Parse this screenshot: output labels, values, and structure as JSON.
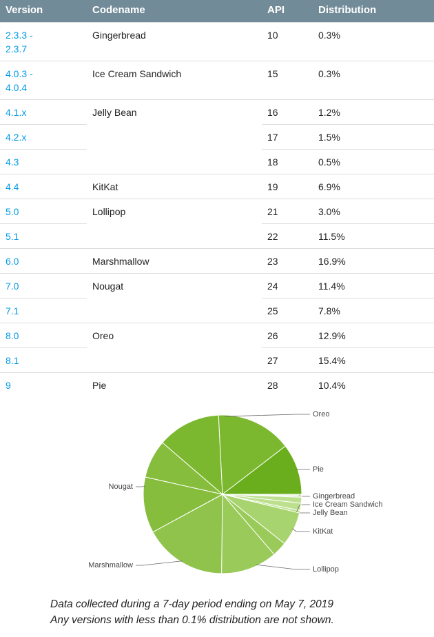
{
  "table": {
    "headers": [
      "Version",
      "Codename",
      "API",
      "Distribution"
    ],
    "groups": [
      {
        "codename": "Gingerbread",
        "rows": [
          {
            "version": "2.3.3 - 2.3.7",
            "api": 10,
            "distribution": {
              "value": 0.3,
              "label": "0.3%"
            }
          }
        ]
      },
      {
        "codename": "Ice Cream Sandwich",
        "rows": [
          {
            "version": "4.0.3 - 4.0.4",
            "api": 15,
            "distribution": {
              "value": 0.3,
              "label": "0.3%"
            }
          }
        ]
      },
      {
        "codename": "Jelly Bean",
        "rows": [
          {
            "version": "4.1.x",
            "api": 16,
            "distribution": {
              "value": 1.2,
              "label": "1.2%"
            }
          },
          {
            "version": "4.2.x",
            "api": 17,
            "distribution": {
              "value": 1.5,
              "label": "1.5%"
            }
          },
          {
            "version": "4.3",
            "api": 18,
            "distribution": {
              "value": 0.5,
              "label": "0.5%"
            }
          }
        ]
      },
      {
        "codename": "KitKat",
        "rows": [
          {
            "version": "4.4",
            "api": 19,
            "distribution": {
              "value": 6.9,
              "label": "6.9%"
            }
          }
        ]
      },
      {
        "codename": "Lollipop",
        "rows": [
          {
            "version": "5.0",
            "api": 21,
            "distribution": {
              "value": 3.0,
              "label": "3.0%"
            }
          },
          {
            "version": "5.1",
            "api": 22,
            "distribution": {
              "value": 11.5,
              "label": "11.5%"
            }
          }
        ]
      },
      {
        "codename": "Marshmallow",
        "rows": [
          {
            "version": "6.0",
            "api": 23,
            "distribution": {
              "value": 16.9,
              "label": "16.9%"
            }
          }
        ]
      },
      {
        "codename": "Nougat",
        "rows": [
          {
            "version": "7.0",
            "api": 24,
            "distribution": {
              "value": 11.4,
              "label": "11.4%"
            }
          },
          {
            "version": "7.1",
            "api": 25,
            "distribution": {
              "value": 7.8,
              "label": "7.8%"
            }
          }
        ]
      },
      {
        "codename": "Oreo",
        "rows": [
          {
            "version": "8.0",
            "api": 26,
            "distribution": {
              "value": 12.9,
              "label": "12.9%"
            }
          },
          {
            "version": "8.1",
            "api": 27,
            "distribution": {
              "value": 15.4,
              "label": "15.4%"
            }
          }
        ]
      },
      {
        "codename": "Pie",
        "rows": [
          {
            "version": "9",
            "api": 28,
            "distribution": {
              "value": 10.4,
              "label": "10.4%"
            }
          }
        ]
      }
    ]
  },
  "pie": {
    "slices": [
      {
        "label": "Gingerbread",
        "color": "#e2f1cf"
      },
      {
        "label": "Ice Cream Sandwich",
        "color": "#d3eab6"
      },
      {
        "label": "Jelly Bean",
        "color": "#bde08f"
      },
      {
        "label": "KitKat",
        "color": "#a8d46f"
      },
      {
        "label": "Lollipop",
        "color": "#9acb5a"
      },
      {
        "label": "Marshmallow",
        "color": "#8fc34c"
      },
      {
        "label": "Nougat",
        "color": "#86bd3c"
      },
      {
        "label": "Oreo",
        "color": "#7cb82f"
      },
      {
        "label": "Pie",
        "color": "#6aae1e"
      }
    ]
  },
  "footer": {
    "lines": [
      "Data collected during a 7-day period ending on May 7, 2019",
      "Any versions with less than 0.1% distribution are not shown."
    ]
  }
}
